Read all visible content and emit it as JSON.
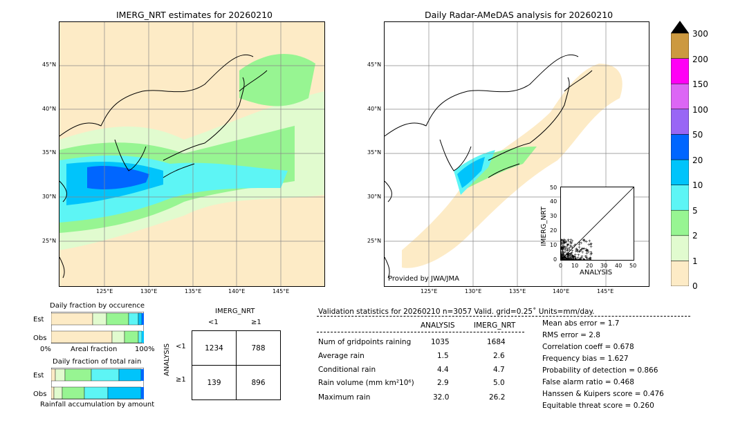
{
  "left_map": {
    "title": "IMERG_NRT estimates for 20260210"
  },
  "right_map": {
    "title": "Daily Radar-AMeDAS analysis for 20260210",
    "credit": "Provided by JWA/JMA"
  },
  "lat_labels": [
    "45°N",
    "40°N",
    "35°N",
    "30°N",
    "25°N"
  ],
  "lon_labels": [
    "125°E",
    "130°E",
    "135°E",
    "140°E",
    "145°E"
  ],
  "colorbar": {
    "ticks": [
      "300",
      "200",
      "150",
      "100",
      "50",
      "20",
      "10",
      "5",
      "2",
      "1",
      "0"
    ],
    "colors": [
      "#fdebc6",
      "#e1fbcf",
      "#97f592",
      "#5df5f5",
      "#00c4fb",
      "#0066ff",
      "#9966f5",
      "#dc66f5",
      "#ff00f5",
      "#cc9940"
    ]
  },
  "scatter": {
    "ylabel": "IMERG_NRT",
    "xlabel": "ANALYSIS",
    "ticks": [
      "0",
      "10",
      "20",
      "30",
      "40",
      "50"
    ]
  },
  "fraction_occ": {
    "title": "Daily fraction by occurence",
    "row1": "Est",
    "row2": "Obs",
    "axis_left": "0%",
    "axis_mid": "Areal fraction",
    "axis_right": "100%"
  },
  "fraction_rain": {
    "title": "Daily fraction of total rain",
    "row1": "Est",
    "row2": "Obs",
    "footer": "Rainfall accumulation by amount"
  },
  "contingency": {
    "col_title": "IMERG_NRT",
    "col_lt": "<1",
    "col_ge": "≥1",
    "row_title": "ANALYSIS",
    "row_lt": "<1",
    "row_ge": "≥1",
    "c11": "1234",
    "c12": "788",
    "c21": "139",
    "c22": "896"
  },
  "validation": {
    "header": "Validation statistics for 20260210  n=3057 Valid. grid=0.25˚ Units=mm/day.",
    "col_analysis": "ANALYSIS",
    "col_imerg": "IMERG_NRT",
    "rows": [
      {
        "label": "Num of gridpoints raining",
        "analysis": "1035",
        "imerg": "1684"
      },
      {
        "label": "Average rain",
        "analysis": "1.5",
        "imerg": "2.6"
      },
      {
        "label": "Conditional rain",
        "analysis": "4.4",
        "imerg": "4.7"
      },
      {
        "label": "Rain volume (mm km²10⁶)",
        "analysis": "2.9",
        "imerg": "5.0"
      },
      {
        "label": "Maximum rain",
        "analysis": "32.0",
        "imerg": "26.2"
      }
    ],
    "scores": [
      "Mean abs error =    1.7",
      "RMS error =    2.8",
      "Correlation coeff =  0.678",
      "Frequency bias =  1.627",
      "Probability of detection =  0.866",
      "False alarm ratio =  0.468",
      "Hanssen & Kuipers score =  0.476",
      "Equitable threat score =  0.260"
    ]
  },
  "chart_data": {
    "type": "table",
    "contingency": [
      [
        1234,
        788
      ],
      [
        139,
        896
      ]
    ],
    "stats": {
      "n": 3057,
      "num_gridpoints_raining": {
        "analysis": 1035,
        "imerg": 1684
      },
      "average_rain": {
        "analysis": 1.5,
        "imerg": 2.6
      },
      "conditional_rain": {
        "analysis": 4.4,
        "imerg": 4.7
      },
      "rain_volume": {
        "analysis": 2.9,
        "imerg": 5.0
      },
      "maximum_rain": {
        "analysis": 32.0,
        "imerg": 26.2
      },
      "mean_abs_error": 1.7,
      "rms_error": 2.8,
      "correlation": 0.678,
      "frequency_bias": 1.627,
      "pod": 0.866,
      "far": 0.468,
      "hk_score": 0.476,
      "ets": 0.26
    },
    "scatter_ylim": [
      0,
      50
    ],
    "scatter_xlim": [
      0,
      50
    ]
  }
}
